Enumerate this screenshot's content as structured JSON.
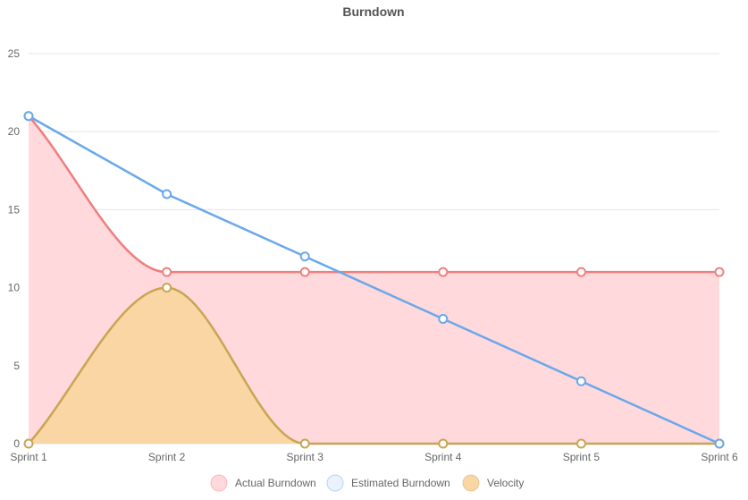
{
  "chart_data": {
    "type": "line",
    "title": "Burndown",
    "categories": [
      "Sprint 1",
      "Sprint 2",
      "Sprint 3",
      "Sprint 4",
      "Sprint 5",
      "Sprint 6"
    ],
    "ylim": [
      0,
      25
    ],
    "yticks": [
      0,
      5,
      10,
      15,
      20,
      25
    ],
    "grid": true,
    "legend": "bottom",
    "series": [
      {
        "name": "Actual Burndown",
        "values": [
          21,
          11,
          11,
          11,
          11,
          11
        ],
        "color": "#ee7f7f",
        "fill": "#ffd9dc",
        "filled": true,
        "smooth": true
      },
      {
        "name": "Estimated Burndown",
        "values": [
          21,
          16,
          12,
          8,
          4,
          0
        ],
        "color": "#6aa8ea",
        "fill": "#eaf3fc",
        "filled": false,
        "smooth": false
      },
      {
        "name": "Velocity",
        "values": [
          0,
          10,
          0,
          0,
          0,
          0
        ],
        "color": "#c9a553",
        "fill": "#f9d6a4",
        "filled": true,
        "smooth": true
      }
    ]
  }
}
